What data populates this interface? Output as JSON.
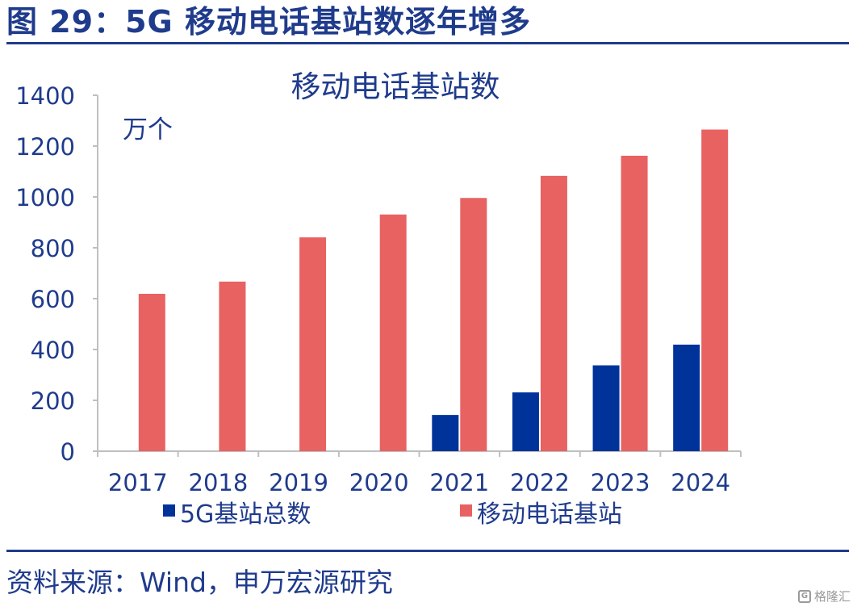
{
  "figure_title": "图 29：5G 移动电话基站数逐年增多",
  "source": "资料来源：Wind，申万宏源研究",
  "watermark": {
    "icon": "G",
    "text": "格隆汇"
  },
  "colors": {
    "accent": "#1f3b8c",
    "series_5g": "#00339a",
    "series_mobile": "#e86262",
    "axis": "#bfbfbf",
    "text": "#1f3b8c"
  },
  "chart_data": {
    "type": "bar",
    "title": "移动电话基站数",
    "unit_label": "万个",
    "categories": [
      "2017",
      "2018",
      "2019",
      "2020",
      "2021",
      "2022",
      "2023",
      "2024"
    ],
    "series": [
      {
        "name": "5G基站总数",
        "values": [
          null,
          null,
          null,
          null,
          142.5,
          231.2,
          337.7,
          419.1
        ]
      },
      {
        "name": "移动电话基站",
        "values": [
          619,
          667,
          841,
          931,
          996,
          1083,
          1162,
          1265
        ]
      }
    ],
    "ylim": [
      0,
      1400
    ],
    "yticks": [
      0,
      200,
      400,
      600,
      800,
      1000,
      1200,
      1400
    ],
    "legend_position": "bottom",
    "grid": false
  }
}
